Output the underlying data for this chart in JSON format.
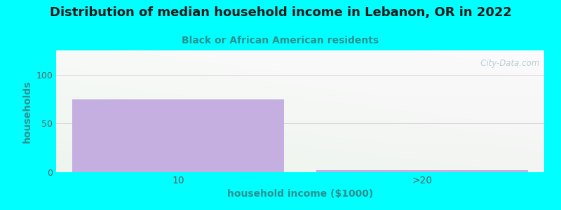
{
  "title": "Distribution of median household income in Lebanon, OR in 2022",
  "subtitle": "Black or African American residents",
  "xlabel": "household income ($1000)",
  "ylabel": "households",
  "categories": [
    "10",
    ">20"
  ],
  "values": [
    75,
    2
  ],
  "bar_color": "#c5aee0",
  "bar_edgecolor": "#c5aee0",
  "ylim": [
    0,
    125
  ],
  "yticks": [
    0,
    50,
    100
  ],
  "background_outer": "#00ffff",
  "grad_top_left": "#eaf5ea",
  "grad_bottom_right": "#f5fbf5",
  "title_fontsize": 13,
  "subtitle_fontsize": 10,
  "subtitle_color": "#2a9090",
  "ylabel_color": "#2a9090",
  "xlabel_color": "#2a9090",
  "tick_color": "#606060",
  "watermark": "   City-Data.com",
  "watermark_color": "#a8c8d0",
  "grid_color": "#d8d8d8"
}
